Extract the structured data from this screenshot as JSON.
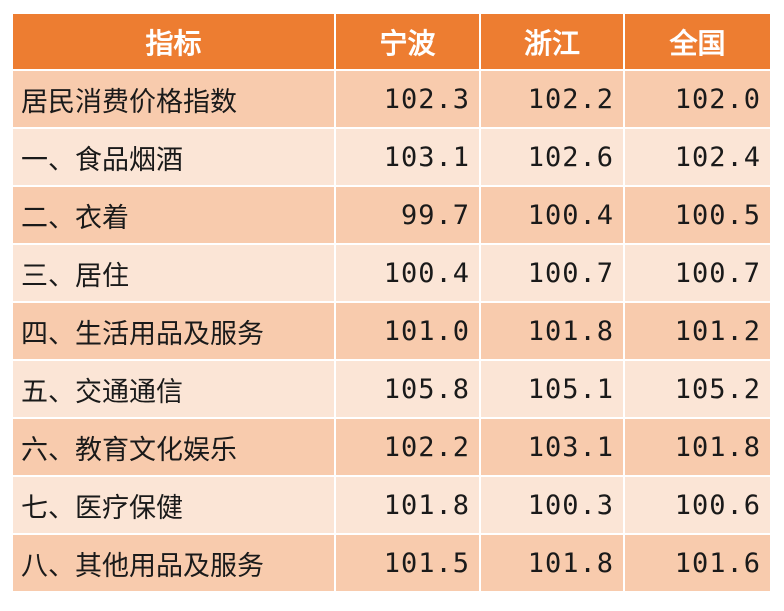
{
  "colors": {
    "header_bg": "#ed7d31",
    "header_text": "#ffffff",
    "row_odd_bg": "#f8cbad",
    "row_even_bg": "#fbe5d6"
  },
  "chart_data": {
    "type": "table",
    "columns": [
      "指标",
      "宁波",
      "浙江",
      "全国"
    ],
    "rows": [
      [
        "居民消费价格指数",
        "102.3",
        "102.2",
        "102.0"
      ],
      [
        "一、食品烟酒",
        "103.1",
        "102.6",
        "102.4"
      ],
      [
        "二、衣着",
        "99.7",
        "100.4",
        "100.5"
      ],
      [
        "三、居住",
        "100.4",
        "100.7",
        "100.7"
      ],
      [
        "四、生活用品及服务",
        "101.0",
        "101.8",
        "101.2"
      ],
      [
        "五、交通通信",
        "105.8",
        "105.1",
        "105.2"
      ],
      [
        "六、教育文化娱乐",
        "102.2",
        "103.1",
        "101.8"
      ],
      [
        "七、医疗保健",
        "101.8",
        "100.3",
        "100.6"
      ],
      [
        "八、其他用品及服务",
        "101.5",
        "101.8",
        "101.6"
      ]
    ]
  }
}
